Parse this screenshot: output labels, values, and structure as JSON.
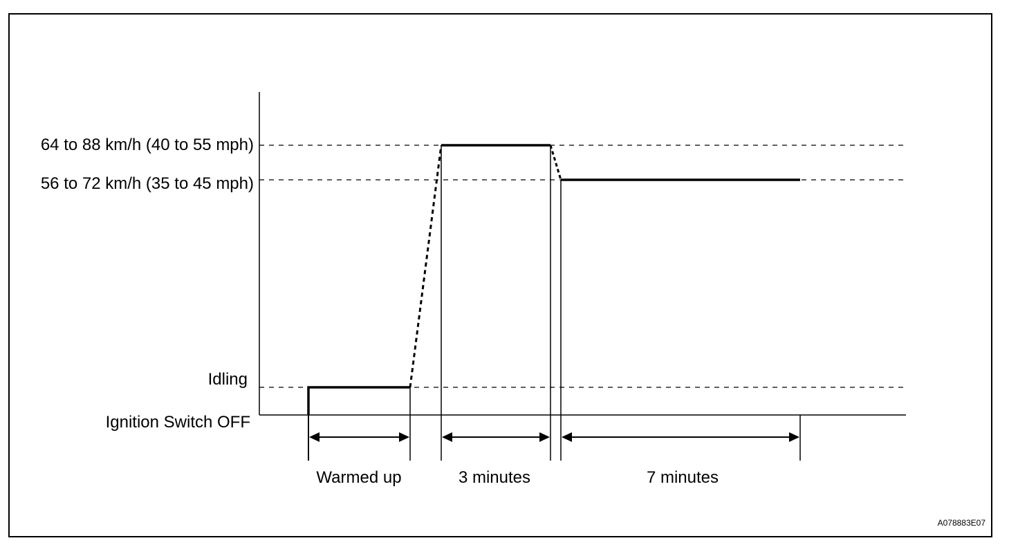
{
  "diagram": {
    "y_levels": {
      "high": "64 to 88 km/h (40 to 55 mph)",
      "mid": "56 to 72 km/h (35 to 45 mph)",
      "idle": "Idling",
      "off": "Ignition Switch OFF"
    },
    "phases": {
      "warm": "Warmed up",
      "three": "3 minutes",
      "seven": "7 minutes"
    },
    "figure_code": "A078883E07"
  }
}
